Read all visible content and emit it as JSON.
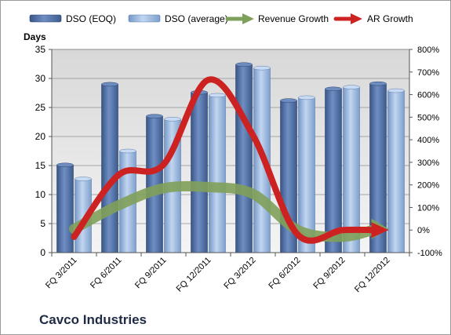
{
  "chart_data": {
    "type": "bar",
    "title": "Cavco Industries",
    "ylabel": "Days",
    "ylim": [
      0,
      35
    ],
    "y2lim": [
      -100,
      800
    ],
    "y_ticks": [
      "0",
      "5",
      "10",
      "15",
      "20",
      "25",
      "30",
      "35"
    ],
    "y2_ticks": [
      "-100%",
      "0%",
      "100%",
      "200%",
      "300%",
      "400%",
      "500%",
      "600%",
      "700%",
      "800%"
    ],
    "grid": true,
    "legend_placement": "top",
    "categories": [
      "FQ 3/2011",
      "FQ 6/2011",
      "FQ 9/2011",
      "FQ 12/2011",
      "FQ 3/2012",
      "FQ 6/2012",
      "FQ 9/2012",
      "FQ 12/2012"
    ],
    "bar_series": [
      {
        "name": "DSO (EOQ)",
        "axis": "left",
        "color": "#4f6fa3",
        "values": [
          15.1,
          29.0,
          23.5,
          27.6,
          32.4,
          26.2,
          28.2,
          29.1
        ]
      },
      {
        "name": "DSO (average)",
        "axis": "left",
        "color": "#93b3df",
        "values": [
          12.7,
          17.5,
          23.0,
          27.1,
          31.8,
          26.7,
          28.5,
          27.9
        ]
      }
    ],
    "line_series": [
      {
        "name": "Revenue Growth",
        "axis": "right",
        "color": "#7fa05a",
        "values": [
          5,
          110,
          185,
          190,
          160,
          0,
          -30,
          5
        ]
      },
      {
        "name": "AR Growth",
        "axis": "right",
        "color": "#cc2222",
        "values": [
          -30,
          245,
          290,
          665,
          420,
          -20,
          0,
          0
        ]
      }
    ]
  }
}
